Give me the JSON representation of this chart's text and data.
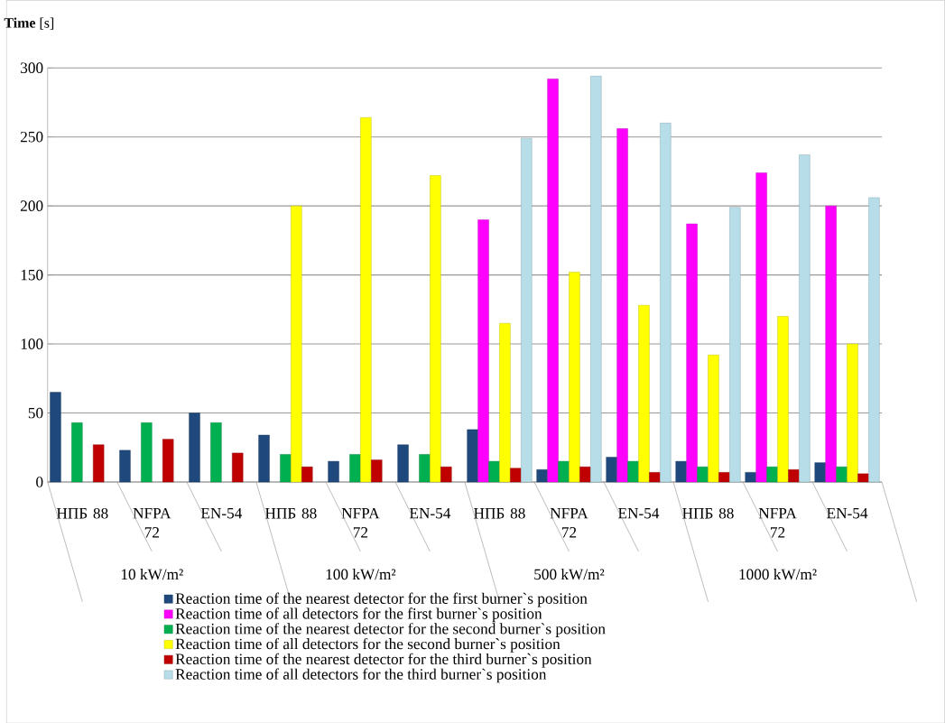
{
  "chart_data": {
    "type": "bar",
    "ylabel": "**Time** [s]",
    "categories": [
      "НПБ 88",
      "NFPA 72",
      "EN-54",
      "НПБ 88",
      "NFPA 72",
      "EN-54",
      "НПБ 88",
      "NFPA 72",
      "EN-54",
      "НПБ 88",
      "NFPA 72",
      "EN-54"
    ],
    "annotations": [
      "10 kW/m²",
      "100 kW/m²",
      "500 kW/m²",
      "1000 kW/m²"
    ],
    "series": [
      {
        "name": "Reaction time of the nearest detector for the first burner`s position",
        "color": "#1f497d",
        "values": [
          65,
          23,
          50,
          34,
          15,
          27,
          38,
          9,
          18,
          15,
          7,
          14
        ]
      },
      {
        "name": "Reaction time of all detectors for the first burner`s position",
        "color": "#ff00ff",
        "values": [
          null,
          null,
          null,
          null,
          null,
          null,
          190,
          292,
          256,
          187,
          224,
          200
        ]
      },
      {
        "name": "Reaction time of the nearest detector for the second burner`s position",
        "color": "#00b050",
        "values": [
          43,
          43,
          43,
          20,
          20,
          20,
          15,
          15,
          15,
          11,
          11,
          11
        ]
      },
      {
        "name": "Reaction time of all detectors for the second burner`s position",
        "color": "#ffff00",
        "values": [
          null,
          null,
          null,
          200,
          264,
          222,
          115,
          152,
          128,
          92,
          120,
          100
        ]
      },
      {
        "name": "Reaction time of the nearest detector for the third burner`s position",
        "color": "#c00000",
        "values": [
          27,
          31,
          21,
          11,
          16,
          11,
          10,
          11,
          7,
          7,
          9,
          6
        ]
      },
      {
        "name": "Reaction time of all detectors for the third burner`s position",
        "color": "#b7dee8",
        "values": [
          null,
          null,
          null,
          null,
          null,
          null,
          249,
          294,
          260,
          199,
          237,
          206
        ]
      }
    ],
    "ylim": [
      0,
      300
    ],
    "yticks": [
      0,
      50,
      100,
      150,
      200,
      250,
      300
    ],
    "grid": "y",
    "legend": "bottom"
  }
}
